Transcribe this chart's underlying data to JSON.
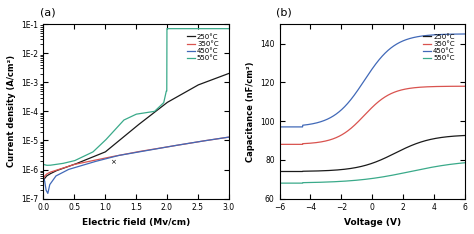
{
  "panel_a": {
    "title": "(a)",
    "xlabel": "Electric field (Mv/cm)",
    "ylabel": "Current density (A/cm²)",
    "xlim": [
      0,
      3.0
    ],
    "ylim": [
      1e-07,
      0.1
    ],
    "legend_labels": [
      "250°C",
      "350°C",
      "450°C",
      "550°C"
    ],
    "colors": [
      "#1a1a1a",
      "#d9534f",
      "#4169b8",
      "#3aaa8a"
    ]
  },
  "panel_b": {
    "title": "(b)",
    "xlabel": "Voltage (V)",
    "ylabel": "Capacitance (nF/cm²)",
    "xlim": [
      -6,
      6
    ],
    "ylim": [
      60,
      150
    ],
    "yticks": [
      60,
      80,
      100,
      120,
      140
    ],
    "xticks": [
      -6,
      -4,
      -2,
      0,
      2,
      4,
      6
    ],
    "legend_labels": [
      "250°C",
      "350°C",
      "450°C",
      "550°C"
    ],
    "colors": [
      "#1a1a1a",
      "#d9534f",
      "#4169b8",
      "#3aaa8a"
    ]
  }
}
